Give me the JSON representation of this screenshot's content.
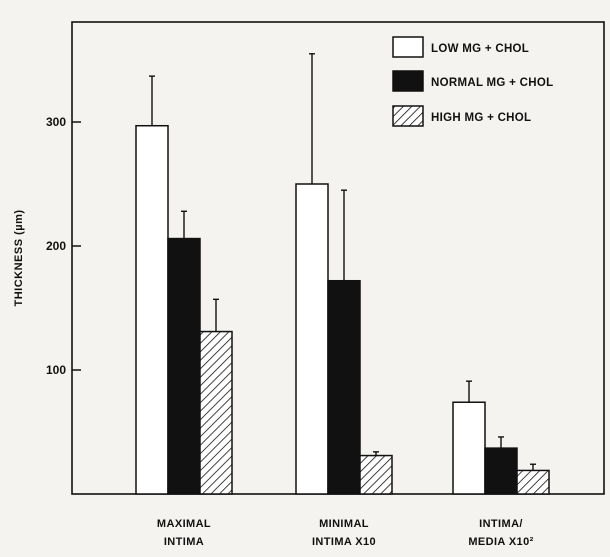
{
  "chart_data": {
    "type": "bar",
    "ylabel": "THICKNESS (µm)",
    "ylim": [
      0,
      380
    ],
    "yticks": [
      100,
      200,
      300
    ],
    "categories": [
      [
        "MAXIMAL",
        "INTIMA"
      ],
      [
        "MINIMAL",
        "INTIMA X10"
      ],
      [
        "INTIMA/",
        "MEDIA X10²"
      ]
    ],
    "series": [
      {
        "name": "LOW MG + CHOL",
        "fill": "white",
        "values": [
          297,
          250,
          74
        ],
        "errors": [
          40,
          105,
          17
        ]
      },
      {
        "name": "NORMAL MG + CHOL",
        "fill": "black",
        "values": [
          206,
          172,
          37
        ],
        "errors": [
          22,
          73,
          9
        ]
      },
      {
        "name": "HIGH MG + CHOL",
        "fill": "hatch",
        "values": [
          131,
          31,
          19
        ],
        "errors": [
          26,
          3,
          5
        ]
      }
    ],
    "legend_position": "top-right",
    "grid": false,
    "colors": {
      "ink": "#111111",
      "paper": "#f4f3ef",
      "bar_white": "#ffffff",
      "bar_black": "#111111"
    }
  }
}
